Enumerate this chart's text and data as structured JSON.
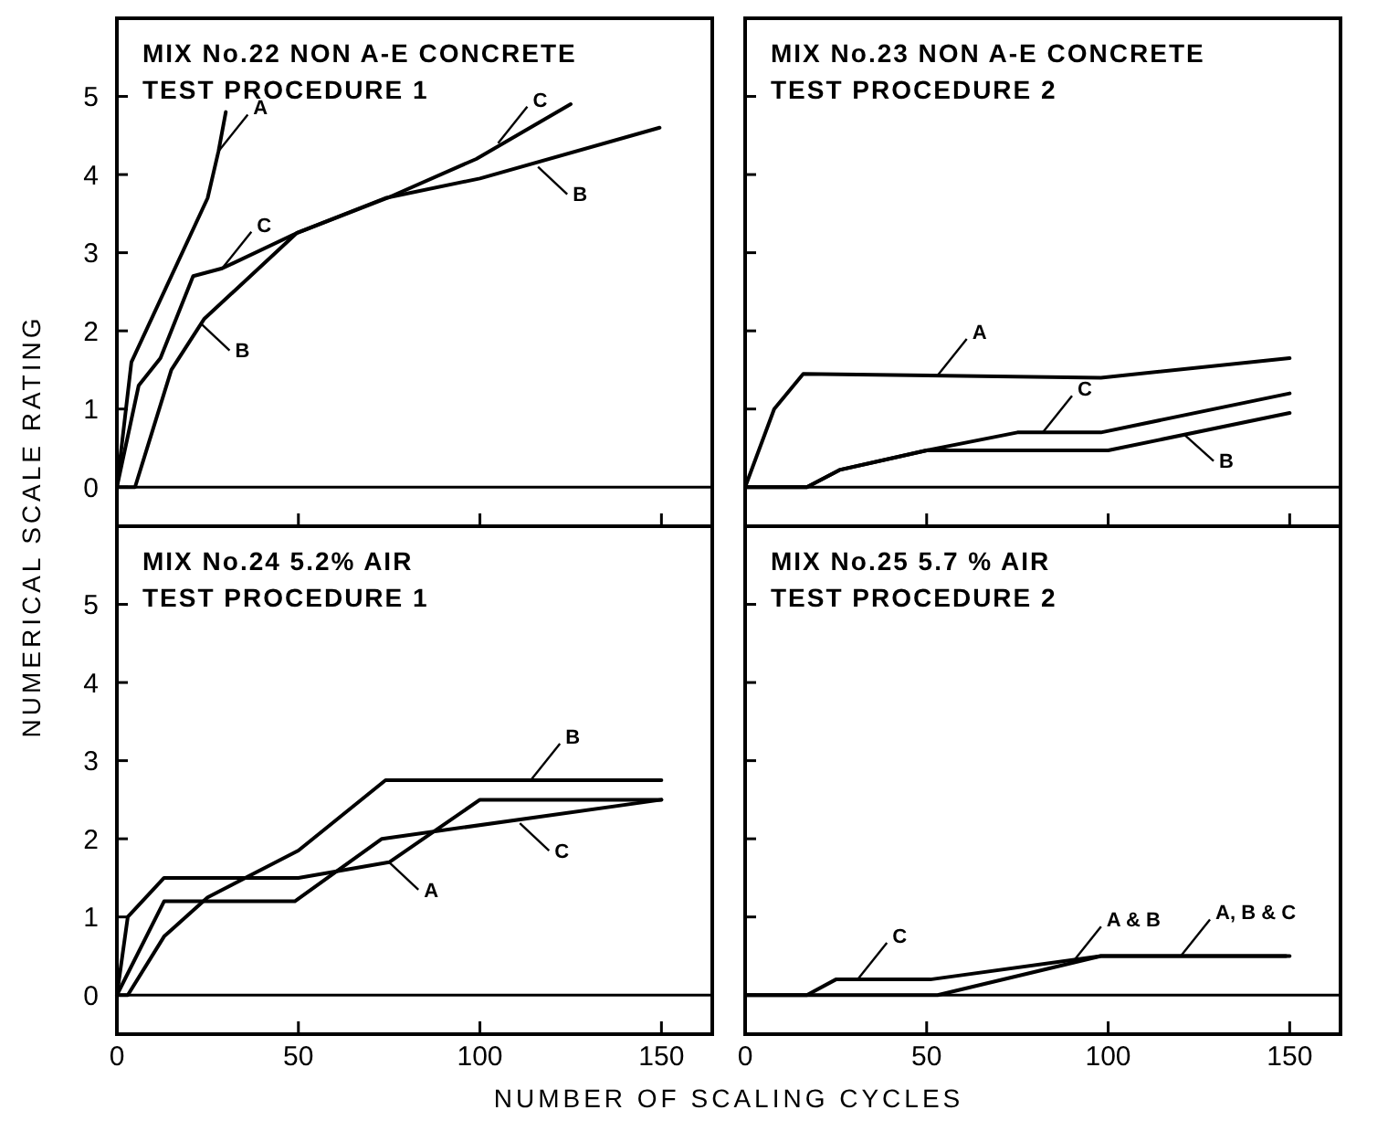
{
  "chart_data": [
    {
      "type": "line",
      "title": "MIX No.22 NON A-E CONCRETE",
      "subtitle": "TEST PROCEDURE 1",
      "ylabel": "NUMERICAL SCALE RATING",
      "xlim": [
        0,
        164
      ],
      "ylim": [
        -0.5,
        6
      ],
      "xticks": [
        0,
        50,
        100,
        150
      ],
      "yticks": [
        0,
        1,
        2,
        3,
        4,
        5
      ],
      "tick_labels": "y",
      "grid": false,
      "marker": "none",
      "line_style": "solid",
      "ref_lines": [
        {
          "axis": "y",
          "value": 0,
          "color": "#000000"
        }
      ],
      "series": [
        {
          "color": "#000000",
          "x": [
            0,
            4,
            25,
            28,
            30
          ],
          "values": [
            0,
            1.6,
            3.7,
            4.3,
            4.8
          ]
        },
        {
          "color": "#000000",
          "x": [
            0,
            5,
            15,
            24,
            49.5,
            74,
            100,
            149.5
          ],
          "values": [
            0,
            0,
            1.5,
            2.15,
            3.25,
            3.7,
            3.95,
            4.6
          ]
        },
        {
          "color": "#000000",
          "x": [
            0,
            6,
            12,
            21,
            29,
            49.5,
            74.5,
            99,
            125
          ],
          "values": [
            0,
            1.3,
            1.65,
            2.7,
            2.8,
            3.25,
            3.7,
            4.2,
            4.9
          ]
        }
      ],
      "annotations": [
        {
          "text": "A",
          "x": 28,
          "y": 4.3
        },
        {
          "text": "C",
          "x": 29,
          "y": 2.8
        },
        {
          "text": "B",
          "x": 23,
          "y": 2.1
        },
        {
          "text": "C",
          "x": 105,
          "y": 4.4
        },
        {
          "text": "B",
          "x": 116,
          "y": 4.1
        }
      ]
    },
    {
      "type": "line",
      "title": "MIX No.23 NON A-E CONCRETE",
      "subtitle": "TEST PROCEDURE 2",
      "xlim": [
        0,
        164
      ],
      "ylim": [
        -0.5,
        6
      ],
      "xticks": [
        0,
        50,
        100,
        150
      ],
      "yticks": [
        0,
        1,
        2,
        3,
        4,
        5
      ],
      "tick_labels": false,
      "grid": false,
      "marker": "none",
      "line_style": "solid",
      "ref_lines": [
        {
          "axis": "y",
          "value": 0,
          "color": "#000000"
        }
      ],
      "series": [
        {
          "color": "#000000",
          "x": [
            0,
            8,
            16,
            98,
            150
          ],
          "values": [
            0,
            1,
            1.45,
            1.4,
            1.65
          ]
        },
        {
          "color": "#000000",
          "x": [
            0,
            17,
            26,
            50,
            100,
            150
          ],
          "values": [
            0,
            0,
            0.22,
            0.47,
            0.47,
            0.95
          ]
        },
        {
          "color": "#000000",
          "x": [
            0,
            17,
            26,
            50,
            75,
            98,
            150
          ],
          "values": [
            0,
            0,
            0.22,
            0.47,
            0.7,
            0.7,
            1.2
          ]
        }
      ],
      "annotations": [
        {
          "text": "A",
          "x": 53,
          "y": 1.43
        },
        {
          "text": "C",
          "x": 82,
          "y": 0.7
        },
        {
          "text": "B",
          "x": 121,
          "y": 0.67
        }
      ]
    },
    {
      "type": "line",
      "title": "MIX No.24 5.2% AIR",
      "subtitle": "TEST PROCEDURE 1",
      "xlabel": "NUMBER OF SCALING CYCLES",
      "xlim": [
        0,
        164
      ],
      "ylim": [
        -0.5,
        6
      ],
      "xticks": [
        0,
        50,
        100,
        150
      ],
      "yticks": [
        0,
        1,
        2,
        3,
        4,
        5
      ],
      "grid": false,
      "marker": "none",
      "line_style": "solid",
      "ref_lines": [
        {
          "axis": "y",
          "value": 0,
          "color": "#000000"
        }
      ],
      "series": [
        {
          "color": "#000000",
          "x": [
            0,
            3,
            13,
            50,
            75,
            100,
            150
          ],
          "values": [
            0,
            1,
            1.5,
            1.5,
            1.7,
            2.5,
            2.5
          ]
        },
        {
          "color": "#000000",
          "x": [
            0,
            3,
            13,
            25,
            50,
            74,
            150
          ],
          "values": [
            0,
            0,
            0.75,
            1.25,
            1.85,
            2.75,
            2.75
          ]
        },
        {
          "color": "#000000",
          "x": [
            0,
            13,
            49,
            73,
            150
          ],
          "values": [
            0,
            1.2,
            1.2,
            2,
            2.5
          ]
        }
      ],
      "annotations": [
        {
          "text": "B",
          "x": 114,
          "y": 2.75
        },
        {
          "text": "A",
          "x": 75,
          "y": 1.7
        },
        {
          "text": "C",
          "x": 111,
          "y": 2.2
        }
      ]
    },
    {
      "type": "line",
      "title": "MIX No.25 5.7 % AIR",
      "subtitle": "TEST PROCEDURE 2",
      "xlim": [
        0,
        164
      ],
      "ylim": [
        -0.5,
        6
      ],
      "xticks": [
        0,
        50,
        100,
        150
      ],
      "yticks": [
        0,
        1,
        2,
        3,
        4,
        5
      ],
      "tick_labels": "x",
      "grid": false,
      "marker": "none",
      "line_style": "solid",
      "ref_lines": [
        {
          "axis": "y",
          "value": 0,
          "color": "#000000"
        }
      ],
      "series": [
        {
          "color": "#000000",
          "x": [
            0,
            53,
            98,
            150
          ],
          "values": [
            0,
            0,
            0.5,
            0.5
          ]
        },
        {
          "color": "#000000",
          "x": [
            0,
            17,
            25,
            51,
            98,
            149
          ],
          "values": [
            0,
            0,
            0.2,
            0.2,
            0.5,
            0.5
          ]
        }
      ],
      "annotations": [
        {
          "text": "C",
          "x": 31,
          "y": 0.2
        },
        {
          "text": "A & B",
          "x": 90,
          "y": 0.41
        },
        {
          "text": "A, B & C",
          "x": 120,
          "y": 0.5
        }
      ]
    }
  ]
}
